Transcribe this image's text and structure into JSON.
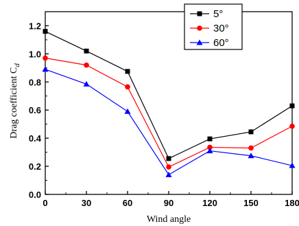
{
  "chart_data": {
    "type": "line",
    "title": "",
    "xlabel": "Wind angle",
    "ylabel": "Drag coefficient C",
    "ylabel_subscript": "d",
    "x": [
      0,
      30,
      60,
      90,
      120,
      150,
      180
    ],
    "xlim": [
      0,
      180
    ],
    "ylim": [
      0.0,
      1.3
    ],
    "xticks": [
      "0",
      "30",
      "60",
      "90",
      "120",
      "150",
      "180"
    ],
    "yticks": [
      "0.0",
      "0.2",
      "0.4",
      "0.6",
      "0.8",
      "1.0",
      "1.2"
    ],
    "grid": false,
    "legend_position": "top-right",
    "series": [
      {
        "name": "5°",
        "color": "#000000",
        "marker": "square",
        "values": [
          1.16,
          1.02,
          0.875,
          0.255,
          0.395,
          0.445,
          0.63
        ]
      },
      {
        "name": "30°",
        "color": "#ff0000",
        "marker": "circle",
        "values": [
          0.97,
          0.92,
          0.765,
          0.195,
          0.335,
          0.33,
          0.485
        ]
      },
      {
        "name": "60°",
        "color": "#0000ff",
        "marker": "triangle",
        "values": [
          0.89,
          0.785,
          0.59,
          0.14,
          0.31,
          0.275,
          0.205
        ]
      }
    ]
  }
}
